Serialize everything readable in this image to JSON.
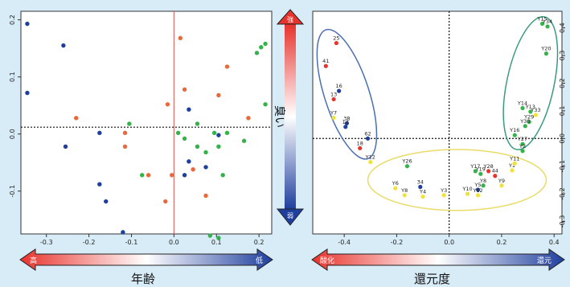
{
  "colors": {
    "background": "#d8ecf8",
    "red": "#e8322c",
    "blue": "#1f3f9e",
    "green": "#33b34a",
    "yellow": "#f1e23a",
    "orange_dot": "#e86a3c",
    "ellipse_blue": "#4a6fb5",
    "ellipse_green": "#3a9a80",
    "ellipse_yellow": "#e9dc6a"
  },
  "left_chart": {
    "x_ticks": [
      "-0.3",
      "-0.2",
      "-0.1",
      "0.0",
      "0.1",
      "0.2"
    ],
    "y_ticks": [
      "0.2",
      "0.1",
      "0.0",
      "-0.1"
    ]
  },
  "right_chart": {
    "x_ticks": [
      "-0.4",
      "-0.2",
      "0.0",
      "0.2",
      "0.4"
    ],
    "y_ticks": [
      "0.4",
      "0.3",
      "0.2",
      "0.1",
      "0.0",
      "-0.1",
      "-0.2",
      "-0.3"
    ]
  },
  "vertical_bar": {
    "label": "臭い",
    "top_cap": "強",
    "bottom_cap": "弱"
  },
  "bottom_left": {
    "title": "年齢",
    "left_cap": "高",
    "right_cap": "低"
  },
  "bottom_right": {
    "title": "還元度",
    "left_cap": "酸化",
    "right_cap": "還元"
  },
  "chart_data": [
    {
      "type": "scatter",
      "xlim": [
        -0.36,
        0.23
      ],
      "ylim": [
        -0.175,
        0.215
      ],
      "reference_lines": {
        "x": 0.0,
        "y": 0.012
      },
      "series": [
        {
          "color": "blue",
          "points": [
            [
              -0.345,
              0.193
            ],
            [
              -0.345,
              0.072
            ],
            [
              -0.26,
              0.155
            ],
            [
              -0.255,
              -0.022
            ],
            [
              -0.175,
              -0.088
            ],
            [
              -0.16,
              -0.118
            ],
            [
              -0.175,
              0.002
            ],
            [
              -0.12,
              -0.172
            ],
            [
              0.035,
              0.043
            ],
            [
              0.035,
              -0.048
            ],
            [
              0.025,
              -0.072
            ],
            [
              0.075,
              -0.058
            ],
            [
              0.105,
              -0.002
            ]
          ]
        },
        {
          "color": "orange",
          "points": [
            [
              -0.23,
              0.028
            ],
            [
              -0.115,
              0.002
            ],
            [
              -0.115,
              -0.022
            ],
            [
              -0.06,
              -0.072
            ],
            [
              -0.005,
              -0.072
            ],
            [
              0.015,
              0.168
            ],
            [
              0.025,
              0.078
            ],
            [
              0.045,
              -0.062
            ],
            [
              0.105,
              0.068
            ],
            [
              0.125,
              0.118
            ],
            [
              0.175,
              0.028
            ],
            [
              -0.015,
              0.052
            ],
            [
              -0.02,
              -0.118
            ],
            [
              0.075,
              -0.108
            ]
          ]
        },
        {
          "color": "green",
          "points": [
            [
              -0.105,
              0.018
            ],
            [
              -0.075,
              -0.072
            ],
            [
              0.01,
              0.002
            ],
            [
              0.025,
              -0.008
            ],
            [
              0.055,
              0.018
            ],
            [
              0.055,
              -0.022
            ],
            [
              0.075,
              -0.032
            ],
            [
              0.095,
              0.002
            ],
            [
              0.105,
              -0.022
            ],
            [
              0.115,
              -0.072
            ],
            [
              0.125,
              0.002
            ],
            [
              0.165,
              -0.012
            ],
            [
              0.195,
              0.142
            ],
            [
              0.205,
              0.152
            ],
            [
              0.215,
              0.158
            ],
            [
              0.215,
              0.052
            ],
            [
              0.085,
              -0.178
            ],
            [
              0.105,
              -0.182
            ]
          ]
        }
      ]
    },
    {
      "type": "scatter",
      "xlim": [
        -0.52,
        0.43
      ],
      "ylim": [
        -0.345,
        0.46
      ],
      "reference_lines": {
        "x": 0.0,
        "y": 0.0
      },
      "groups": [
        {
          "color": "blue",
          "points": [
            {
              "label": "16",
              "x": -0.42,
              "y": 0.172
            },
            {
              "label": "38",
              "x": -0.39,
              "y": 0.055
            },
            {
              "label": "13",
              "x": -0.395,
              "y": 0.042
            },
            {
              "label": "62",
              "x": -0.31,
              "y": 0.0
            },
            {
              "label": "34",
              "x": -0.11,
              "y": -0.175
            },
            {
              "label": "Y5",
              "x": 0.11,
              "y": -0.185
            }
          ]
        },
        {
          "color": "red",
          "points": [
            {
              "label": "25",
              "x": -0.43,
              "y": 0.345
            },
            {
              "label": "41",
              "x": -0.47,
              "y": 0.262
            },
            {
              "label": "13",
              "x": -0.44,
              "y": 0.142
            },
            {
              "label": "18",
              "x": -0.34,
              "y": -0.035
            },
            {
              "label": "Y28",
              "x": 0.15,
              "y": -0.118
            },
            {
              "label": "44",
              "x": 0.175,
              "y": -0.135
            }
          ]
        },
        {
          "color": "yellow",
          "points": [
            {
              "label": "Y7",
              "x": -0.44,
              "y": 0.075
            },
            {
              "label": "Y12",
              "x": -0.3,
              "y": -0.085
            },
            {
              "label": "Y6",
              "x": -0.205,
              "y": -0.18
            },
            {
              "label": "Y8",
              "x": -0.17,
              "y": -0.205
            },
            {
              "label": "Y4",
              "x": -0.1,
              "y": -0.21
            },
            {
              "label": "Y3",
              "x": -0.02,
              "y": -0.205
            },
            {
              "label": "Y10",
              "x": 0.07,
              "y": -0.2
            },
            {
              "label": "Y1",
              "x": 0.24,
              "y": -0.115
            },
            {
              "label": "Y9",
              "x": 0.2,
              "y": -0.17
            },
            {
              "label": "Y11",
              "x": 0.25,
              "y": -0.09
            },
            {
              "label": "Y12",
              "x": 0.11,
              "y": -0.205
            },
            {
              "label": "Y33",
              "x": 0.33,
              "y": 0.085
            }
          ]
        },
        {
          "color": "green",
          "points": [
            {
              "label": "Y15",
              "x": 0.355,
              "y": 0.415
            },
            {
              "label": "Y34",
              "x": 0.375,
              "y": 0.405
            },
            {
              "label": "Y20",
              "x": 0.37,
              "y": 0.307
            },
            {
              "label": "Y14",
              "x": 0.28,
              "y": 0.11
            },
            {
              "label": "Y13",
              "x": 0.31,
              "y": 0.097
            },
            {
              "label": "Y29",
              "x": 0.305,
              "y": 0.06
            },
            {
              "label": "Y30",
              "x": 0.29,
              "y": 0.045
            },
            {
              "label": "Y16",
              "x": 0.25,
              "y": 0.012
            },
            {
              "label": "Y27",
              "x": 0.28,
              "y": -0.02
            },
            {
              "label": "Y2",
              "x": 0.28,
              "y": -0.045
            },
            {
              "label": "Y26",
              "x": -0.16,
              "y": -0.1
            },
            {
              "label": "Y17",
              "x": 0.1,
              "y": -0.118
            },
            {
              "label": "Y19",
              "x": 0.12,
              "y": -0.128
            },
            {
              "label": "Y8",
              "x": 0.13,
              "y": -0.17
            }
          ]
        }
      ],
      "ellipses": [
        {
          "color": "blue",
          "cx": -0.39,
          "cy": 0.16,
          "rx": 0.085,
          "ry": 0.245,
          "rotate_deg": -18
        },
        {
          "color": "green",
          "cx": 0.31,
          "cy": 0.2,
          "rx": 0.09,
          "ry": 0.245,
          "rotate_deg": 12
        },
        {
          "color": "yellow",
          "cx": 0.03,
          "cy": -0.15,
          "rx": 0.34,
          "ry": 0.11,
          "rotate_deg": 0
        }
      ]
    }
  ]
}
